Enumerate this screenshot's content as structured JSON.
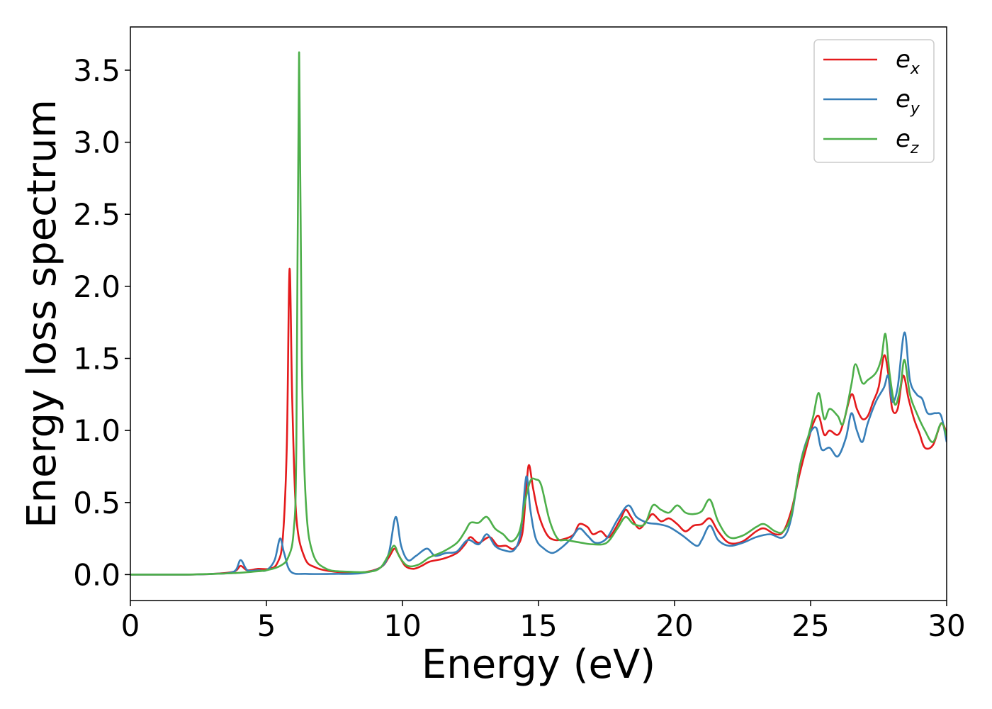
{
  "chart_data": {
    "type": "line",
    "title": "",
    "xlabel": "Energy (eV)",
    "ylabel": "Energy loss spectrum",
    "xlim": [
      0,
      30
    ],
    "ylim": [
      -0.18,
      3.8
    ],
    "xticks": [
      0,
      5,
      10,
      15,
      20,
      25,
      30
    ],
    "xtick_labels": [
      "0",
      "5",
      "10",
      "15",
      "20",
      "25",
      "30"
    ],
    "yticks": [
      0.0,
      0.5,
      1.0,
      1.5,
      2.0,
      2.5,
      3.0,
      3.5
    ],
    "ytick_labels": [
      "0.0",
      "0.5",
      "1.0",
      "1.5",
      "2.0",
      "2.5",
      "3.0",
      "3.5"
    ],
    "grid": false,
    "legend_position": "top-right",
    "series": [
      {
        "name": "e_x",
        "legend_main": "e",
        "legend_sub": "x",
        "color": "#e41a1c",
        "points": [
          [
            0,
            0
          ],
          [
            2,
            0
          ],
          [
            3,
            0.005
          ],
          [
            3.8,
            0.02
          ],
          [
            4.05,
            0.06
          ],
          [
            4.3,
            0.03
          ],
          [
            4.7,
            0.04
          ],
          [
            5.1,
            0.04
          ],
          [
            5.4,
            0.08
          ],
          [
            5.6,
            0.25
          ],
          [
            5.75,
            0.9
          ],
          [
            5.85,
            2.12
          ],
          [
            5.95,
            1.2
          ],
          [
            6.1,
            0.4
          ],
          [
            6.4,
            0.12
          ],
          [
            6.8,
            0.05
          ],
          [
            7.5,
            0.02
          ],
          [
            8.5,
            0.015
          ],
          [
            9.2,
            0.05
          ],
          [
            9.5,
            0.12
          ],
          [
            9.7,
            0.18
          ],
          [
            9.85,
            0.14
          ],
          [
            10.1,
            0.06
          ],
          [
            10.4,
            0.04
          ],
          [
            10.7,
            0.06
          ],
          [
            11.0,
            0.09
          ],
          [
            11.5,
            0.11
          ],
          [
            12.0,
            0.15
          ],
          [
            12.3,
            0.21
          ],
          [
            12.5,
            0.26
          ],
          [
            12.8,
            0.22
          ],
          [
            13.2,
            0.26
          ],
          [
            13.5,
            0.2
          ],
          [
            13.8,
            0.2
          ],
          [
            14.1,
            0.18
          ],
          [
            14.4,
            0.28
          ],
          [
            14.55,
            0.6
          ],
          [
            14.65,
            0.76
          ],
          [
            14.8,
            0.6
          ],
          [
            15.0,
            0.42
          ],
          [
            15.3,
            0.28
          ],
          [
            15.6,
            0.24
          ],
          [
            16.0,
            0.25
          ],
          [
            16.3,
            0.28
          ],
          [
            16.5,
            0.35
          ],
          [
            16.8,
            0.33
          ],
          [
            17.0,
            0.28
          ],
          [
            17.3,
            0.3
          ],
          [
            17.6,
            0.26
          ],
          [
            18.0,
            0.38
          ],
          [
            18.2,
            0.45
          ],
          [
            18.4,
            0.4
          ],
          [
            18.7,
            0.32
          ],
          [
            19.0,
            0.38
          ],
          [
            19.2,
            0.42
          ],
          [
            19.5,
            0.37
          ],
          [
            19.8,
            0.39
          ],
          [
            20.1,
            0.35
          ],
          [
            20.4,
            0.3
          ],
          [
            20.7,
            0.34
          ],
          [
            21.0,
            0.35
          ],
          [
            21.3,
            0.39
          ],
          [
            21.6,
            0.3
          ],
          [
            22.0,
            0.22
          ],
          [
            22.5,
            0.23
          ],
          [
            23.0,
            0.3
          ],
          [
            23.3,
            0.32
          ],
          [
            23.7,
            0.28
          ],
          [
            24.0,
            0.3
          ],
          [
            24.3,
            0.45
          ],
          [
            24.6,
            0.7
          ],
          [
            24.9,
            0.92
          ],
          [
            25.1,
            1.05
          ],
          [
            25.3,
            1.1
          ],
          [
            25.5,
            0.97
          ],
          [
            25.7,
            1.0
          ],
          [
            26.0,
            0.97
          ],
          [
            26.2,
            1.05
          ],
          [
            26.5,
            1.25
          ],
          [
            26.7,
            1.15
          ],
          [
            26.9,
            1.08
          ],
          [
            27.1,
            1.1
          ],
          [
            27.3,
            1.2
          ],
          [
            27.5,
            1.3
          ],
          [
            27.7,
            1.52
          ],
          [
            27.85,
            1.4
          ],
          [
            28.0,
            1.15
          ],
          [
            28.2,
            1.15
          ],
          [
            28.4,
            1.38
          ],
          [
            28.6,
            1.22
          ],
          [
            28.8,
            1.08
          ],
          [
            29.0,
            0.98
          ],
          [
            29.2,
            0.88
          ],
          [
            29.5,
            0.9
          ],
          [
            29.8,
            1.05
          ],
          [
            30.0,
            0.98
          ]
        ]
      },
      {
        "name": "e_y",
        "legend_main": "e",
        "legend_sub": "y",
        "color": "#377eb8",
        "points": [
          [
            0,
            0
          ],
          [
            2,
            0
          ],
          [
            3,
            0.005
          ],
          [
            3.8,
            0.02
          ],
          [
            4.05,
            0.1
          ],
          [
            4.3,
            0.03
          ],
          [
            4.7,
            0.03
          ],
          [
            5.0,
            0.03
          ],
          [
            5.3,
            0.1
          ],
          [
            5.5,
            0.25
          ],
          [
            5.65,
            0.15
          ],
          [
            5.9,
            0.02
          ],
          [
            6.5,
            0.005
          ],
          [
            7.5,
            0.005
          ],
          [
            8.5,
            0.01
          ],
          [
            9.2,
            0.05
          ],
          [
            9.5,
            0.15
          ],
          [
            9.75,
            0.4
          ],
          [
            9.95,
            0.2
          ],
          [
            10.2,
            0.1
          ],
          [
            10.5,
            0.13
          ],
          [
            10.9,
            0.18
          ],
          [
            11.2,
            0.13
          ],
          [
            11.6,
            0.15
          ],
          [
            12.0,
            0.16
          ],
          [
            12.4,
            0.24
          ],
          [
            12.8,
            0.21
          ],
          [
            13.1,
            0.28
          ],
          [
            13.4,
            0.2
          ],
          [
            13.7,
            0.17
          ],
          [
            14.1,
            0.17
          ],
          [
            14.35,
            0.3
          ],
          [
            14.55,
            0.68
          ],
          [
            14.7,
            0.45
          ],
          [
            14.9,
            0.25
          ],
          [
            15.2,
            0.18
          ],
          [
            15.5,
            0.15
          ],
          [
            15.8,
            0.18
          ],
          [
            16.2,
            0.25
          ],
          [
            16.5,
            0.32
          ],
          [
            16.8,
            0.27
          ],
          [
            17.1,
            0.22
          ],
          [
            17.5,
            0.25
          ],
          [
            17.9,
            0.38
          ],
          [
            18.3,
            0.48
          ],
          [
            18.6,
            0.4
          ],
          [
            19.0,
            0.36
          ],
          [
            19.4,
            0.35
          ],
          [
            19.8,
            0.33
          ],
          [
            20.3,
            0.27
          ],
          [
            20.8,
            0.2
          ],
          [
            21.0,
            0.24
          ],
          [
            21.3,
            0.34
          ],
          [
            21.6,
            0.24
          ],
          [
            22.0,
            0.2
          ],
          [
            22.5,
            0.22
          ],
          [
            23.0,
            0.26
          ],
          [
            23.5,
            0.28
          ],
          [
            24.0,
            0.26
          ],
          [
            24.3,
            0.4
          ],
          [
            24.6,
            0.75
          ],
          [
            24.9,
            0.95
          ],
          [
            25.2,
            1.02
          ],
          [
            25.4,
            0.87
          ],
          [
            25.7,
            0.88
          ],
          [
            26.0,
            0.82
          ],
          [
            26.3,
            0.95
          ],
          [
            26.5,
            1.12
          ],
          [
            26.7,
            1.0
          ],
          [
            26.9,
            0.92
          ],
          [
            27.1,
            1.05
          ],
          [
            27.4,
            1.2
          ],
          [
            27.7,
            1.3
          ],
          [
            27.85,
            1.38
          ],
          [
            28.0,
            1.2
          ],
          [
            28.2,
            1.3
          ],
          [
            28.45,
            1.68
          ],
          [
            28.65,
            1.35
          ],
          [
            28.9,
            1.25
          ],
          [
            29.1,
            1.22
          ],
          [
            29.3,
            1.12
          ],
          [
            29.6,
            1.12
          ],
          [
            29.8,
            1.1
          ],
          [
            30.0,
            0.92
          ]
        ]
      },
      {
        "name": "e_z",
        "legend_main": "e",
        "legend_sub": "z",
        "color": "#4daf4a",
        "points": [
          [
            0,
            0
          ],
          [
            2,
            0
          ],
          [
            3,
            0.005
          ],
          [
            3.8,
            0.01
          ],
          [
            4.5,
            0.02
          ],
          [
            5.0,
            0.03
          ],
          [
            5.5,
            0.06
          ],
          [
            5.8,
            0.12
          ],
          [
            6.0,
            0.3
          ],
          [
            6.1,
            0.9
          ],
          [
            6.2,
            3.62
          ],
          [
            6.3,
            1.5
          ],
          [
            6.45,
            0.5
          ],
          [
            6.7,
            0.15
          ],
          [
            7.2,
            0.04
          ],
          [
            8.0,
            0.02
          ],
          [
            8.8,
            0.02
          ],
          [
            9.2,
            0.05
          ],
          [
            9.5,
            0.14
          ],
          [
            9.7,
            0.2
          ],
          [
            9.9,
            0.12
          ],
          [
            10.2,
            0.06
          ],
          [
            10.6,
            0.07
          ],
          [
            11.0,
            0.12
          ],
          [
            11.5,
            0.16
          ],
          [
            12.0,
            0.22
          ],
          [
            12.3,
            0.3
          ],
          [
            12.5,
            0.36
          ],
          [
            12.8,
            0.36
          ],
          [
            13.1,
            0.4
          ],
          [
            13.4,
            0.32
          ],
          [
            13.7,
            0.28
          ],
          [
            14.0,
            0.23
          ],
          [
            14.3,
            0.3
          ],
          [
            14.5,
            0.5
          ],
          [
            14.7,
            0.65
          ],
          [
            14.9,
            0.66
          ],
          [
            15.1,
            0.62
          ],
          [
            15.4,
            0.38
          ],
          [
            15.7,
            0.25
          ],
          [
            16.0,
            0.24
          ],
          [
            16.3,
            0.23
          ],
          [
            16.6,
            0.22
          ],
          [
            17.0,
            0.21
          ],
          [
            17.5,
            0.22
          ],
          [
            17.9,
            0.32
          ],
          [
            18.2,
            0.4
          ],
          [
            18.5,
            0.35
          ],
          [
            18.9,
            0.35
          ],
          [
            19.2,
            0.48
          ],
          [
            19.5,
            0.45
          ],
          [
            19.8,
            0.43
          ],
          [
            20.1,
            0.48
          ],
          [
            20.4,
            0.43
          ],
          [
            20.7,
            0.42
          ],
          [
            21.0,
            0.44
          ],
          [
            21.3,
            0.52
          ],
          [
            21.6,
            0.37
          ],
          [
            22.0,
            0.26
          ],
          [
            22.5,
            0.27
          ],
          [
            23.0,
            0.33
          ],
          [
            23.3,
            0.35
          ],
          [
            23.7,
            0.3
          ],
          [
            24.0,
            0.3
          ],
          [
            24.3,
            0.42
          ],
          [
            24.6,
            0.75
          ],
          [
            24.9,
            0.95
          ],
          [
            25.1,
            1.1
          ],
          [
            25.3,
            1.26
          ],
          [
            25.5,
            1.08
          ],
          [
            25.7,
            1.15
          ],
          [
            26.0,
            1.1
          ],
          [
            26.2,
            1.05
          ],
          [
            26.5,
            1.32
          ],
          [
            26.65,
            1.46
          ],
          [
            26.9,
            1.33
          ],
          [
            27.1,
            1.35
          ],
          [
            27.4,
            1.4
          ],
          [
            27.6,
            1.5
          ],
          [
            27.75,
            1.67
          ],
          [
            27.9,
            1.4
          ],
          [
            28.1,
            1.18
          ],
          [
            28.3,
            1.3
          ],
          [
            28.45,
            1.49
          ],
          [
            28.65,
            1.25
          ],
          [
            28.9,
            1.12
          ],
          [
            29.2,
            1.0
          ],
          [
            29.5,
            0.92
          ],
          [
            29.8,
            1.05
          ],
          [
            30.0,
            0.96
          ]
        ]
      }
    ]
  }
}
